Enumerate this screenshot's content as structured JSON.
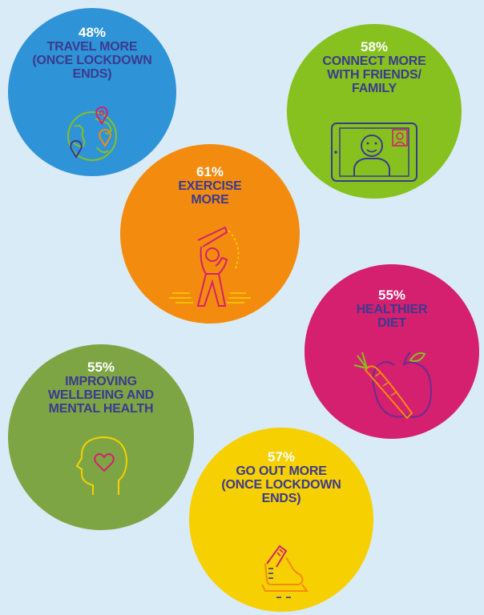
{
  "colors": {
    "background": "#d9ebf6",
    "label_text": "#3b3a8f",
    "percent_text": "#ffffff"
  },
  "stats": [
    {
      "id": "travel",
      "percent": "48%",
      "label": "TRAVEL MORE\n(ONCE LOCKDOWN\nENDS)",
      "color": "#2f93d7",
      "icon": "globe-with-map-pins-icon"
    },
    {
      "id": "connect",
      "percent": "58%",
      "label": "CONNECT MORE\nWITH FRIENDS/\nFAMILY",
      "color": "#86c11f",
      "icon": "video-call-tablet-icon"
    },
    {
      "id": "exercise",
      "percent": "61%",
      "label": "EXERCISE\nMORE",
      "color": "#f38c0e",
      "icon": "stretching-person-icon"
    },
    {
      "id": "diet",
      "percent": "55%",
      "label": "HEALTHIER\nDIET",
      "color": "#d4206f",
      "icon": "apple-and-carrot-icon"
    },
    {
      "id": "wellbeing",
      "percent": "55%",
      "label": "IMPROVING\nWELLBEING AND\nMENTAL HEALTH",
      "color": "#7ea544",
      "icon": "head-with-heart-icon"
    },
    {
      "id": "goout",
      "percent": "57%",
      "label": "GO OUT MORE\n(ONCE LOCKDOWN\nENDS)",
      "color": "#f6d000",
      "icon": "walking-shoe-icon"
    }
  ]
}
